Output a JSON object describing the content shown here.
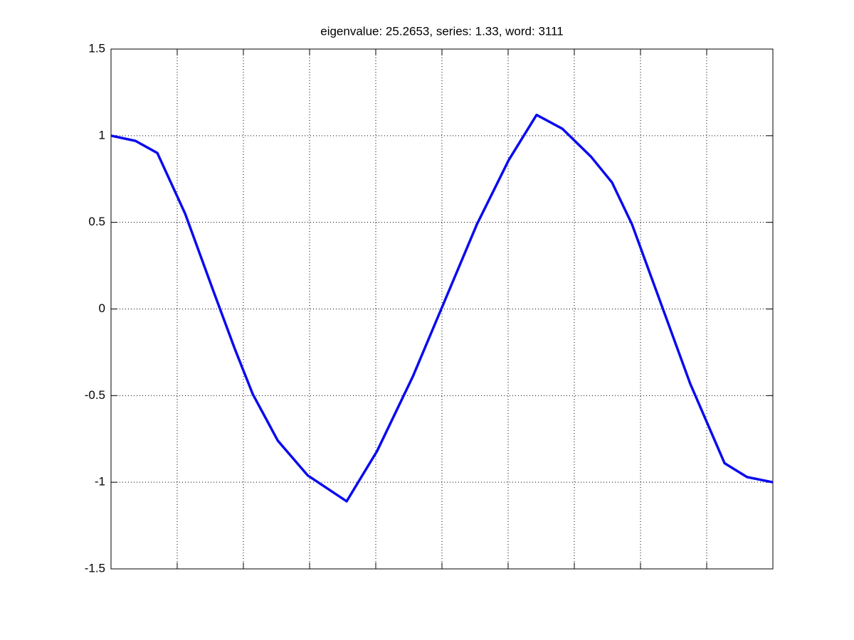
{
  "chart_data": {
    "type": "line",
    "title": "eigenvalue: 25.2653, series: 1.33, word: 3111",
    "x": [
      0,
      0.037,
      0.07,
      0.112,
      0.155,
      0.187,
      0.214,
      0.252,
      0.297,
      0.356,
      0.402,
      0.456,
      0.499,
      0.553,
      0.601,
      0.643,
      0.682,
      0.725,
      0.757,
      0.787,
      0.832,
      0.875,
      0.927,
      0.961,
      1.0
    ],
    "series": [
      {
        "color": "#0a0af0",
        "values": [
          1.0,
          0.97,
          0.9,
          0.55,
          0.1,
          -0.23,
          -0.49,
          -0.76,
          -0.96,
          -1.11,
          -0.82,
          -0.39,
          0.0,
          0.49,
          0.86,
          1.12,
          1.04,
          0.88,
          0.73,
          0.49,
          0.02,
          -0.43,
          -0.89,
          -0.97,
          -1.0
        ]
      }
    ],
    "xlim": [
      0,
      1
    ],
    "xticks": [
      0.1,
      0.2,
      0.3,
      0.4,
      0.5,
      0.6,
      0.7,
      0.8,
      0.9
    ],
    "ylim": [
      -1.5,
      1.5
    ],
    "yticks": [
      -1.5,
      -1,
      -0.5,
      0,
      0.5,
      1,
      1.5
    ],
    "grid": true
  }
}
